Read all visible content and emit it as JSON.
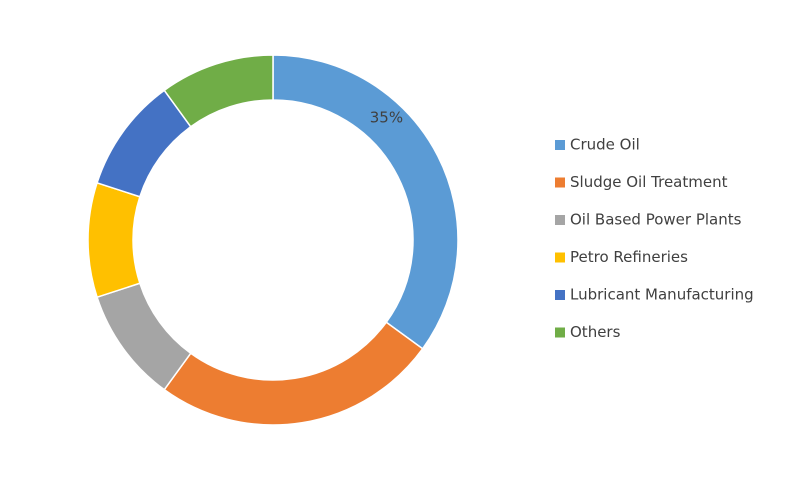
{
  "chart_data": {
    "type": "donut",
    "categories": [
      "Crude Oil",
      "Sludge Oil Treatment",
      "Oil Based Power Plants",
      "Petro Refineries",
      "Lubricant Manufacturing",
      "Others"
    ],
    "values": [
      35,
      25,
      10,
      10,
      10,
      10
    ],
    "value_labels": [
      "35%",
      null,
      null,
      null,
      null,
      null
    ],
    "colors": [
      "#5b9bd5",
      "#ed7d31",
      "#a5a5a5",
      "#ffc000",
      "#4472c4",
      "#70ad47"
    ],
    "legend": "right"
  }
}
